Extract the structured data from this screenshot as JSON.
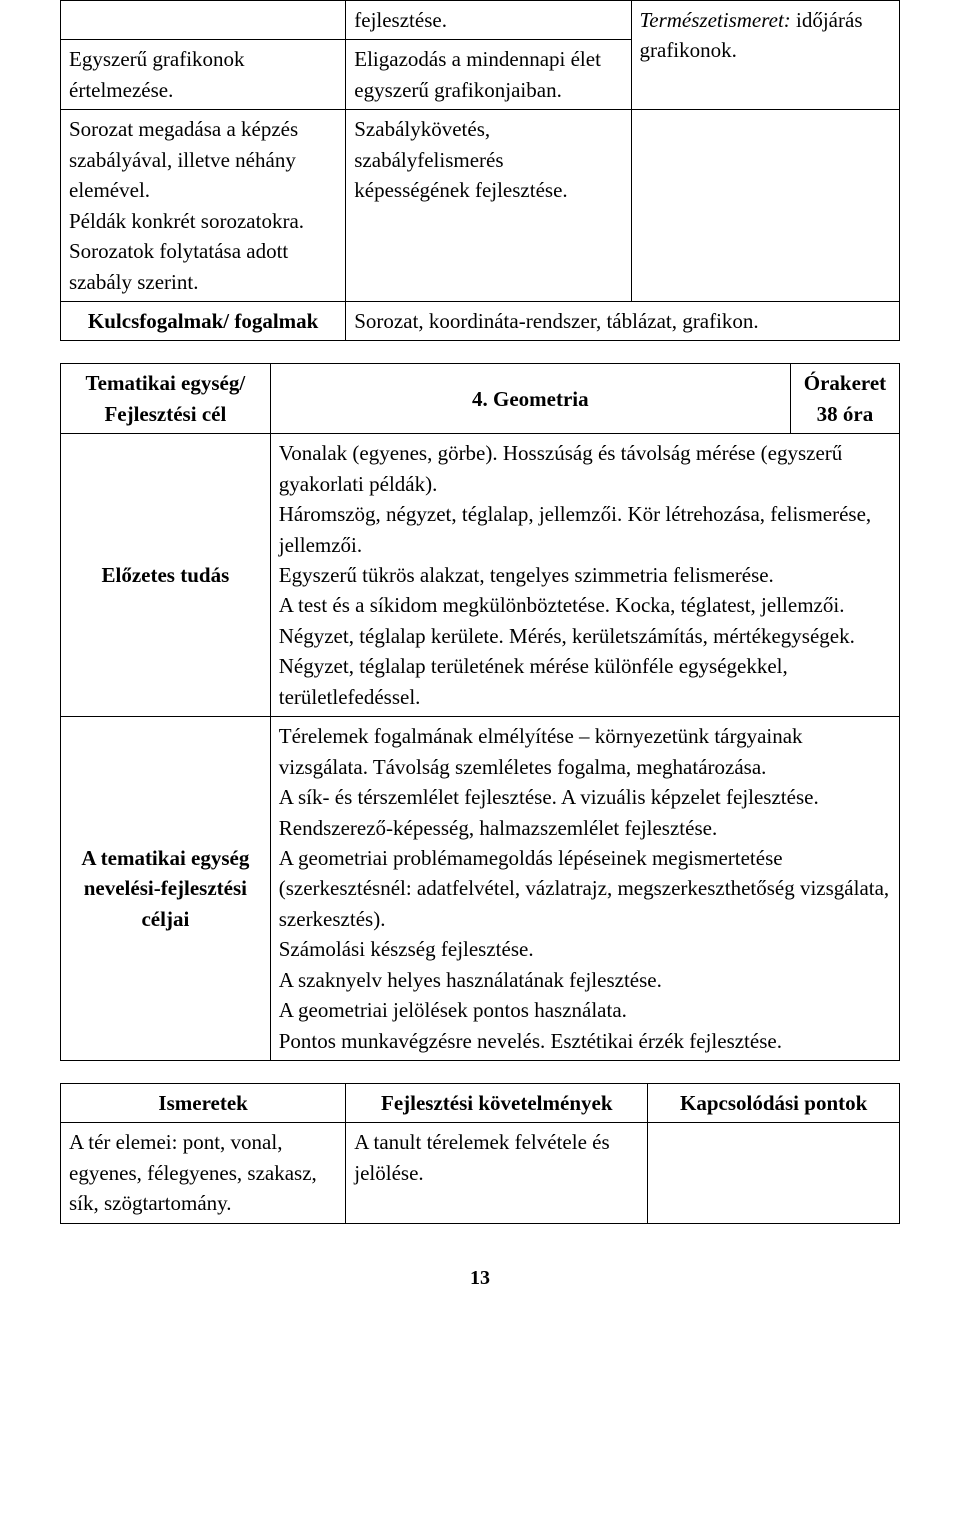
{
  "table1": {
    "row1_col2": "fejlesztése.",
    "row2_col1": "Egyszerű grafikonok értelmezése.",
    "row2_col2": "Eligazodás a mindennapi élet egyszerű grafikonjaiban.",
    "row2_col3_italic": "Természetismeret:",
    "row2_col3_rest": " időjárás grafikonok.",
    "row3_col1": "Sorozat megadása a képzés szabályával, illetve néhány elemével.\nPéldák konkrét sorozatokra.\nSorozatok folytatása adott szabály szerint.",
    "row3_col2": "Szabálykövetés, szabályfelismerés képességének fejlesztése.",
    "row4_col1": "Kulcsfogalmak/ fogalmak",
    "row4_col2": "Sorozat, koordináta-rendszer, táblázat, grafikon."
  },
  "table2": {
    "header_left": "Tematikai egység/ Fejlesztési cél",
    "header_mid": "4. Geometria",
    "header_right_line1": "Órakeret",
    "header_right_line2": "38 óra",
    "row_prev_label": "Előzetes tudás",
    "row_prev_text": "Vonalak (egyenes, görbe). Hosszúság és távolság mérése (egyszerű gyakorlati példák).\nHáromszög, négyzet, téglalap, jellemzői. Kör létrehozása, felismerése, jellemzői.\nEgyszerű tükrös alakzat, tengelyes szimmetria felismerése.\nA test és a síkidom megkülönböztetése. Kocka, téglatest, jellemzői.\nNégyzet, téglalap kerülete. Mérés, kerületszámítás, mértékegységek.\nNégyzet, téglalap területének mérése különféle egységekkel, területlefedéssel.",
    "row_goals_label": "A tematikai egység nevelési-fejlesztési céljai",
    "row_goals_text": "Térelemek fogalmának elmélyítése – környezetünk tárgyainak vizsgálata. Távolság szemléletes fogalma, meghatározása.\nA sík- és térszemlélet fejlesztése. A vizuális képzelet fejlesztése.\nRendszerező-képesség, halmazszemlélet fejlesztése.\nA geometriai problémamegoldás lépéseinek megismertetése (szerkesztésnél: adatfelvétel, vázlatrajz, megszerkeszthetőség vizsgálata, szerkesztés).\nSzámolási készség fejlesztése.\nA szaknyelv helyes használatának fejlesztése.\nA geometriai jelölések pontos használata.\nPontos munkavégzésre nevelés. Esztétikai érzék fejlesztése."
  },
  "table3": {
    "h1": "Ismeretek",
    "h2": "Fejlesztési követelmények",
    "h3": "Kapcsolódási pontok",
    "r1c1": "A tér elemei: pont, vonal, egyenes, félegyenes, szakasz, sík, szögtartomány.",
    "r1c2": "A tanult térelemek felvétele és jelölése."
  },
  "pagenum": "13"
}
